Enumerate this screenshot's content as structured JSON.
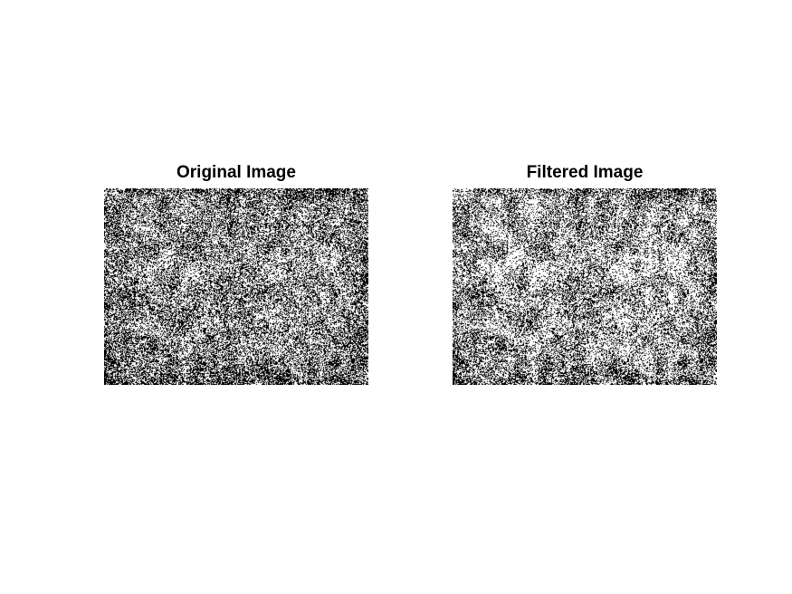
{
  "figure": {
    "panels": [
      {
        "title": "Original Image",
        "image": {
          "kind": "binary-noise-texture",
          "black_fraction": 0.48
        }
      },
      {
        "title": "Filtered Image",
        "image": {
          "kind": "binary-noise-texture",
          "black_fraction": 0.4
        }
      }
    ]
  }
}
